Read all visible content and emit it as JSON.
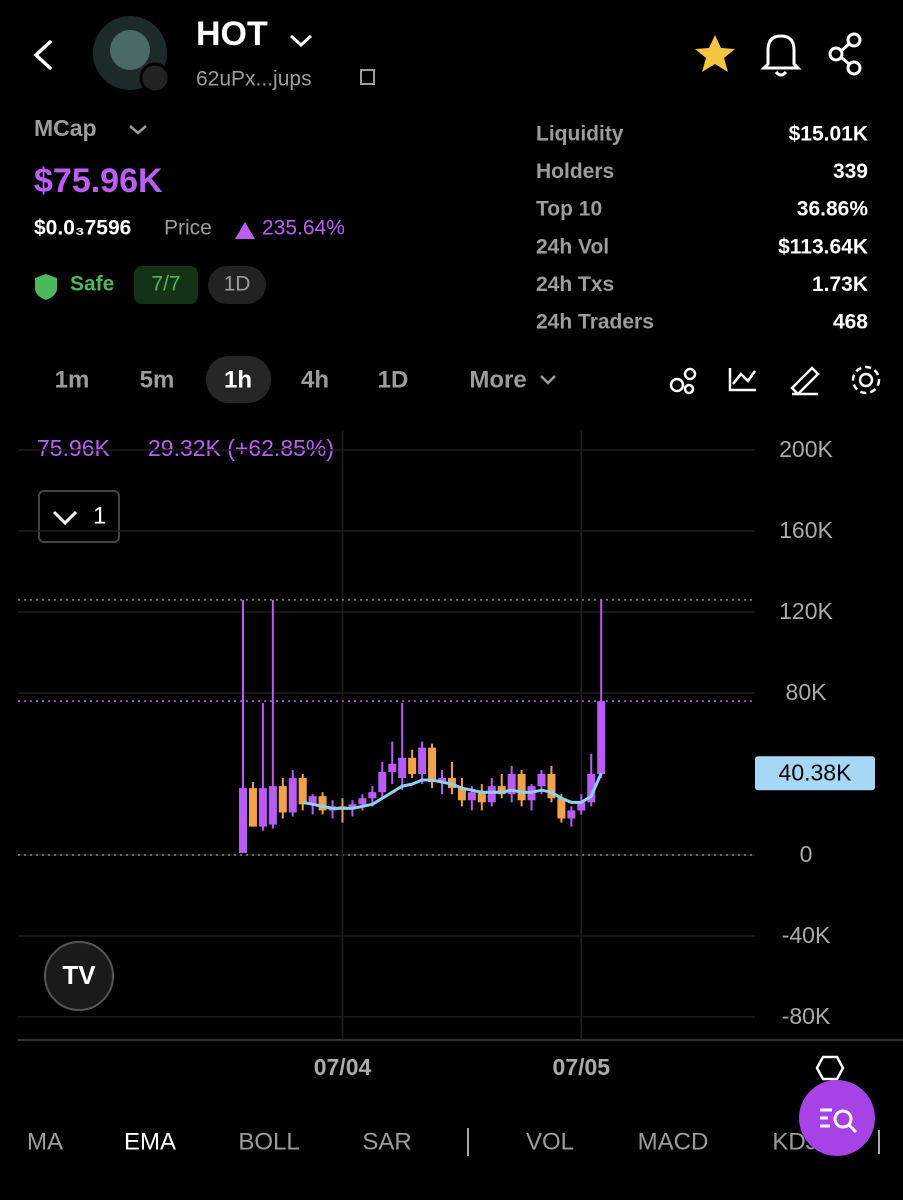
{
  "header": {
    "title": "HOT",
    "address": "62uPx...jups"
  },
  "summary": {
    "mcap_label": "MCap",
    "mcap": "$75.96K",
    "price": "$0.0₃7596",
    "price_label": "Price",
    "change": "235.64%",
    "safe": "Safe",
    "score": "7/7",
    "period": "1D"
  },
  "stats": [
    {
      "label": "Liquidity",
      "value": "$15.01K"
    },
    {
      "label": "Holders",
      "value": "339"
    },
    {
      "label": "Top 10",
      "value": "36.86%"
    },
    {
      "label": "24h Vol",
      "value": "$113.64K"
    },
    {
      "label": "24h Txs",
      "value": "1.73K"
    },
    {
      "label": "24h Traders",
      "value": "468"
    }
  ],
  "timeframes": [
    "1m",
    "5m",
    "1h",
    "4h",
    "1D",
    "More"
  ],
  "legend": {
    "last": "75.96K",
    "change": "29.32K (+62.85%)"
  },
  "selector": "1",
  "indicators": [
    "MA",
    "EMA",
    "BOLL",
    "SAR",
    "VOL",
    "MACD",
    "KDJ"
  ],
  "chart_data": {
    "type": "candlestick",
    "up_color": "#b85cf5",
    "down_color": "#f2a24a",
    "ema_color": "#8fcff2",
    "categories": [
      null,
      null,
      null,
      null,
      null,
      null,
      null,
      null,
      null,
      null,
      "07/04",
      null,
      null,
      null,
      null,
      null,
      null,
      null,
      null,
      null,
      null,
      null,
      null,
      null,
      null,
      null,
      null,
      null,
      null,
      null,
      null,
      null,
      null,
      null,
      "07/05",
      null,
      null
    ],
    "candles": [
      [
        1000,
        126000,
        1000,
        33000
      ],
      [
        33000,
        36000,
        14000,
        14000
      ],
      [
        14000,
        75000,
        12000,
        33000
      ],
      [
        15000,
        126000,
        13000,
        34000
      ],
      [
        34000,
        38000,
        18000,
        21000
      ],
      [
        21000,
        42000,
        19000,
        38000
      ],
      [
        38000,
        40000,
        22000,
        25000
      ],
      [
        25000,
        30000,
        20000,
        29000
      ],
      [
        29000,
        31000,
        20000,
        22000
      ],
      [
        22000,
        27000,
        18000,
        24000
      ],
      [
        24000,
        28000,
        16000,
        23000
      ],
      [
        23000,
        27000,
        19000,
        25000
      ],
      [
        25000,
        30000,
        22000,
        28000
      ],
      [
        28000,
        34000,
        24000,
        31000
      ],
      [
        31000,
        46000,
        28000,
        41000
      ],
      [
        41000,
        56000,
        35000,
        45000
      ],
      [
        38000,
        75000,
        32000,
        48000
      ],
      [
        48000,
        52000,
        38000,
        40000
      ],
      [
        40000,
        56000,
        35000,
        53000
      ],
      [
        53000,
        55000,
        33000,
        36000
      ],
      [
        36000,
        42000,
        30000,
        38000
      ],
      [
        38000,
        46000,
        30000,
        33000
      ],
      [
        33000,
        38000,
        24000,
        27000
      ],
      [
        27000,
        34000,
        22000,
        31000
      ],
      [
        31000,
        35000,
        22000,
        26000
      ],
      [
        26000,
        38000,
        24000,
        34000
      ],
      [
        34000,
        40000,
        28000,
        30000
      ],
      [
        30000,
        44000,
        26000,
        40000
      ],
      [
        40000,
        42000,
        24000,
        27000
      ],
      [
        27000,
        35000,
        22000,
        34000
      ],
      [
        34000,
        42000,
        30000,
        40000
      ],
      [
        40000,
        44000,
        26000,
        28000
      ],
      [
        28000,
        30000,
        16000,
        18000
      ],
      [
        18000,
        24000,
        14000,
        22000
      ],
      [
        22000,
        30000,
        20000,
        26000
      ],
      [
        26000,
        50000,
        24000,
        40000
      ],
      [
        40000,
        126000,
        38000,
        75960
      ]
    ],
    "ema": [
      null,
      null,
      null,
      null,
      null,
      null,
      26000,
      25000,
      24000,
      23000,
      23000,
      23000,
      24000,
      25000,
      28000,
      31000,
      34000,
      35000,
      37000,
      37000,
      36000,
      35000,
      33000,
      32000,
      31000,
      31000,
      31000,
      32000,
      31000,
      31000,
      32000,
      31000,
      28000,
      26000,
      26000,
      29000,
      40380
    ],
    "ema_label": {
      "value": 40380,
      "label": "40.38K"
    },
    "ylim": [
      -91400,
      209900
    ],
    "yticks": [
      {
        "value": 200000,
        "label": "200K"
      },
      {
        "value": 160000,
        "label": "160K"
      },
      {
        "value": 120000,
        "label": "120K"
      },
      {
        "value": 80000,
        "label": "80K"
      },
      0,
      {
        "value": -40000,
        "label": "-40K"
      },
      {
        "value": -80000,
        "label": "-80K"
      }
    ],
    "grid": true
  }
}
